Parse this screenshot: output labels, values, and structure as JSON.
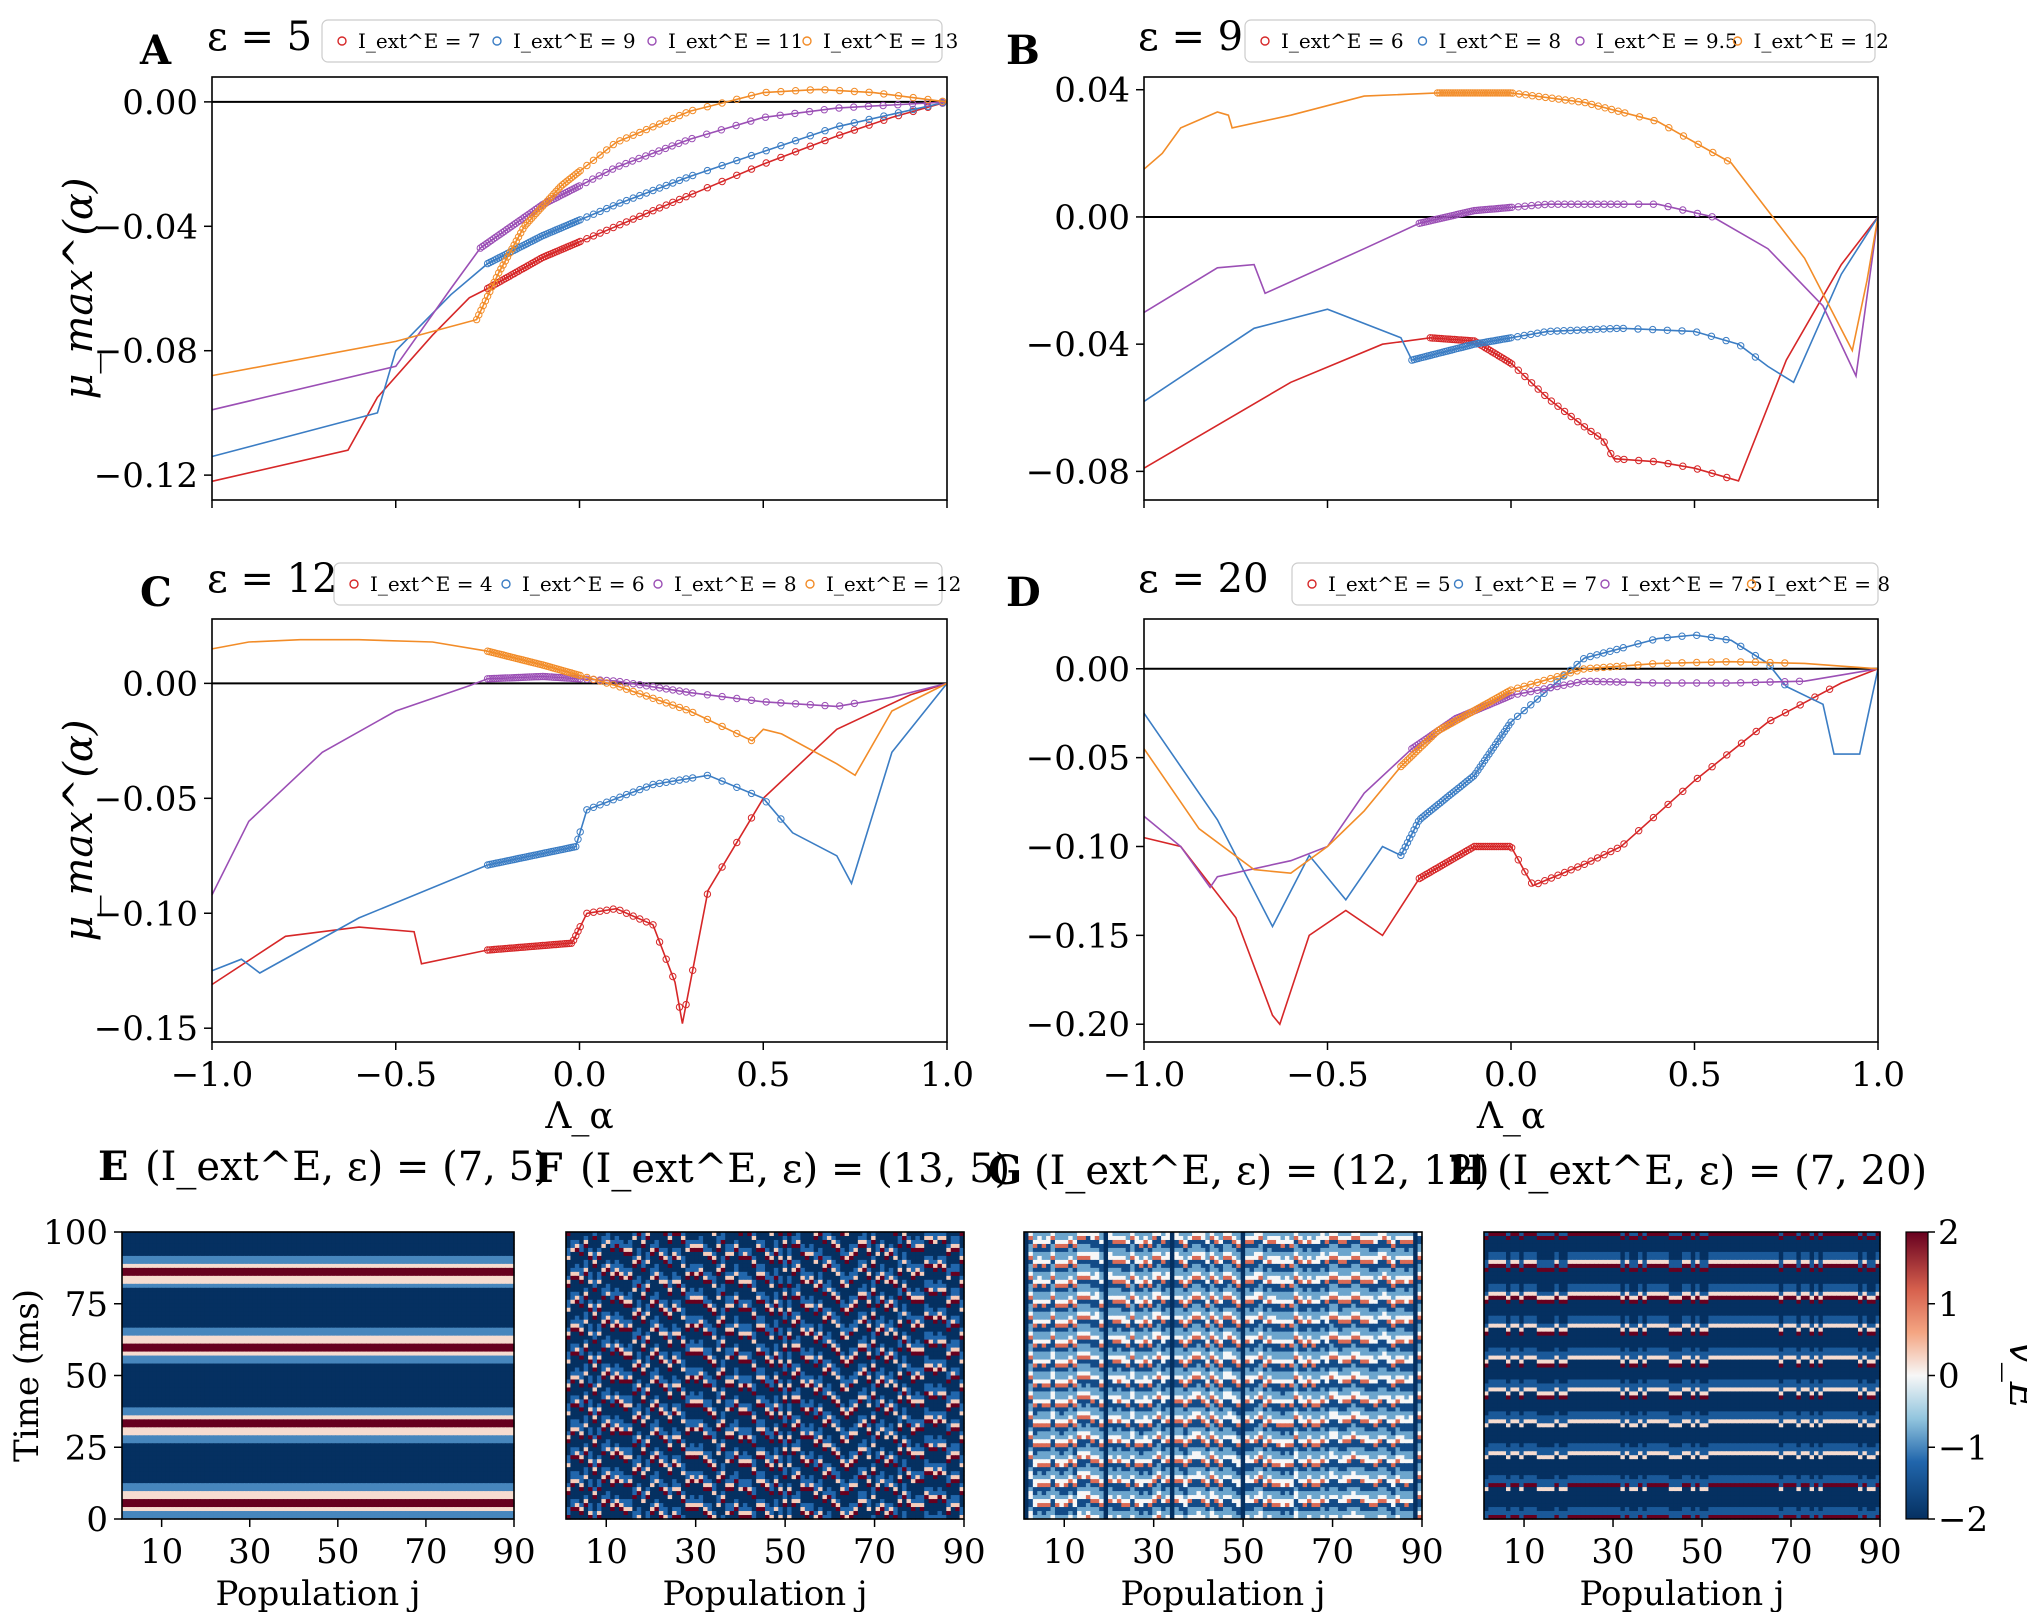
{
  "colors": {
    "red": "#d62728",
    "blue": "#3b7dc4",
    "purple": "#9b4fb5",
    "orange": "#f28c28"
  },
  "chart_data": [
    {
      "panel": "A",
      "type": "line",
      "title": "ε = 5",
      "ylabel": "μ_max^(α)",
      "xlabel": "",
      "xlim": [
        -1,
        1
      ],
      "ylim": [
        -0.128,
        0.008
      ],
      "yticks": [
        "0.00",
        "−0.04",
        "−0.08",
        "−0.12"
      ],
      "ytick_values": [
        0,
        -0.04,
        -0.08,
        -0.12
      ],
      "xticks": [],
      "xtick_values": [],
      "series": [
        {
          "name": "I_ext^E = 7",
          "color": "red",
          "x": [
            -1,
            -0.63,
            -0.55,
            -0.4,
            -0.3,
            -0.25,
            -0.1,
            0.1,
            0.3,
            0.5,
            0.7,
            0.85,
            1.0
          ],
          "y": [
            -0.122,
            -0.112,
            -0.095,
            -0.075,
            -0.063,
            -0.06,
            -0.05,
            -0.04,
            -0.03,
            -0.02,
            -0.011,
            -0.005,
            0.0
          ],
          "markers_from": -0.25
        },
        {
          "name": "I_ext^E = 9",
          "color": "blue",
          "x": [
            -1,
            -0.55,
            -0.5,
            -0.35,
            -0.25,
            -0.1,
            0.1,
            0.3,
            0.5,
            0.7,
            0.85,
            1.0
          ],
          "y": [
            -0.114,
            -0.1,
            -0.08,
            -0.062,
            -0.052,
            -0.043,
            -0.033,
            -0.024,
            -0.016,
            -0.008,
            -0.004,
            0.0
          ],
          "markers_from": -0.25
        },
        {
          "name": "I_ext^E = 11",
          "color": "purple",
          "x": [
            -1,
            -0.5,
            -0.35,
            -0.27,
            -0.1,
            0.1,
            0.3,
            0.5,
            0.7,
            0.85,
            1.0
          ],
          "y": [
            -0.099,
            -0.085,
            -0.06,
            -0.047,
            -0.033,
            -0.021,
            -0.012,
            -0.005,
            -0.002,
            -0.001,
            0.0
          ],
          "markers_from": -0.27
        },
        {
          "name": "I_ext^E = 13",
          "color": "orange",
          "x": [
            -1,
            -0.5,
            -0.28,
            -0.22,
            -0.15,
            -0.05,
            0.1,
            0.3,
            0.5,
            0.65,
            0.8,
            1.0
          ],
          "y": [
            -0.088,
            -0.077,
            -0.07,
            -0.055,
            -0.04,
            -0.027,
            -0.013,
            -0.003,
            0.003,
            0.004,
            0.003,
            0.0
          ],
          "markers_from": -0.28
        }
      ]
    },
    {
      "panel": "B",
      "type": "line",
      "title": "ε = 9",
      "ylabel": "",
      "xlabel": "",
      "xlim": [
        -1,
        1
      ],
      "ylim": [
        -0.089,
        0.044
      ],
      "yticks": [
        "0.04",
        "0.00",
        "−0.04",
        "−0.08"
      ],
      "ytick_values": [
        0.04,
        0,
        -0.04,
        -0.08
      ],
      "xticks": [],
      "xtick_values": [],
      "series": [
        {
          "name": "I_ext^E = 6",
          "color": "red",
          "x": [
            -1,
            -0.6,
            -0.35,
            -0.22,
            -0.1,
            0.0,
            0.1,
            0.2,
            0.25,
            0.28,
            0.4,
            0.5,
            0.62,
            0.75,
            0.9,
            1.0
          ],
          "y": [
            -0.079,
            -0.052,
            -0.04,
            -0.038,
            -0.039,
            -0.046,
            -0.057,
            -0.066,
            -0.07,
            -0.076,
            -0.077,
            -0.079,
            -0.083,
            -0.045,
            -0.015,
            0.0
          ],
          "markers_from": -0.22,
          "markers_to": 0.62
        },
        {
          "name": "I_ext^E = 8",
          "color": "blue",
          "x": [
            -1,
            -0.7,
            -0.5,
            -0.3,
            -0.27,
            -0.1,
            0.1,
            0.3,
            0.5,
            0.62,
            0.7,
            0.77,
            0.9,
            1.0
          ],
          "y": [
            -0.058,
            -0.035,
            -0.029,
            -0.038,
            -0.045,
            -0.04,
            -0.036,
            -0.035,
            -0.036,
            -0.04,
            -0.047,
            -0.052,
            -0.018,
            0.0
          ],
          "markers_from": -0.27,
          "markers_to": 0.7
        },
        {
          "name": "I_ext^E = 9.5",
          "color": "purple",
          "x": [
            -1,
            -0.8,
            -0.7,
            -0.67,
            -0.4,
            -0.25,
            -0.1,
            0.1,
            0.25,
            0.4,
            0.55,
            0.7,
            0.85,
            0.94,
            1.0
          ],
          "y": [
            -0.03,
            -0.016,
            -0.015,
            -0.024,
            -0.01,
            -0.002,
            0.002,
            0.004,
            0.004,
            0.004,
            0.0,
            -0.01,
            -0.028,
            -0.05,
            0.0
          ],
          "markers_from": -0.25,
          "markers_to": 0.55
        },
        {
          "name": "I_ext^E = 12",
          "color": "orange",
          "x": [
            -1,
            -0.95,
            -0.9,
            -0.8,
            -0.77,
            -0.76,
            -0.6,
            -0.4,
            -0.2,
            0.0,
            0.2,
            0.4,
            0.6,
            0.8,
            0.93,
            0.97,
            1.0
          ],
          "y": [
            0.015,
            0.02,
            0.028,
            0.033,
            0.032,
            0.028,
            0.032,
            0.038,
            0.039,
            0.039,
            0.036,
            0.03,
            0.017,
            -0.013,
            -0.042,
            -0.02,
            0.0
          ],
          "markers_from": -0.2,
          "markers_to": 0.6
        }
      ]
    },
    {
      "panel": "C",
      "type": "line",
      "title": "ε = 12",
      "ylabel": "μ_max^(α)",
      "xlabel": "Λ_α",
      "xlim": [
        -1,
        1
      ],
      "ylim": [
        -0.156,
        0.028
      ],
      "yticks": [
        "0.00",
        "−0.05",
        "−0.10",
        "−0.15"
      ],
      "ytick_values": [
        0,
        -0.05,
        -0.1,
        -0.15
      ],
      "xticks": [
        "−1.0",
        "−0.5",
        "0.0",
        "0.5",
        "1.0"
      ],
      "xtick_values": [
        -1,
        -0.5,
        0,
        0.5,
        1
      ],
      "series": [
        {
          "name": "I_ext^E = 4",
          "color": "red",
          "x": [
            -1,
            -0.8,
            -0.6,
            -0.45,
            -0.43,
            -0.25,
            -0.02,
            0.02,
            0.1,
            0.2,
            0.26,
            0.28,
            0.35,
            0.5,
            0.7,
            0.9,
            1.0
          ],
          "y": [
            -0.131,
            -0.11,
            -0.106,
            -0.108,
            -0.122,
            -0.116,
            -0.113,
            -0.1,
            -0.098,
            -0.105,
            -0.13,
            -0.148,
            -0.09,
            -0.05,
            -0.02,
            -0.005,
            0.0
          ],
          "markers_from": -0.25,
          "markers_to": 0.5
        },
        {
          "name": "I_ext^E = 6",
          "color": "blue",
          "x": [
            -1,
            -0.92,
            -0.87,
            -0.6,
            -0.25,
            -0.01,
            0.02,
            0.2,
            0.35,
            0.5,
            0.58,
            0.7,
            0.74,
            0.85,
            1.0
          ],
          "y": [
            -0.125,
            -0.12,
            -0.126,
            -0.102,
            -0.079,
            -0.071,
            -0.055,
            -0.044,
            -0.04,
            -0.05,
            -0.065,
            -0.075,
            -0.087,
            -0.03,
            0.0
          ],
          "markers_from": -0.25,
          "markers_to": 0.58
        },
        {
          "name": "I_ext^E = 8",
          "color": "purple",
          "x": [
            -1,
            -0.9,
            -0.7,
            -0.5,
            -0.3,
            -0.25,
            -0.1,
            0.1,
            0.3,
            0.5,
            0.7,
            0.85,
            1.0
          ],
          "y": [
            -0.092,
            -0.06,
            -0.03,
            -0.012,
            -0.001,
            0.002,
            0.003,
            0.001,
            -0.004,
            -0.008,
            -0.01,
            -0.006,
            0.0
          ],
          "markers_from": -0.25,
          "markers_to": 0.75
        },
        {
          "name": "I_ext^E = 12",
          "color": "orange",
          "x": [
            -1,
            -0.9,
            -0.76,
            -0.6,
            -0.4,
            -0.25,
            -0.1,
            0.1,
            0.3,
            0.47,
            0.5,
            0.55,
            0.7,
            0.75,
            0.85,
            1.0
          ],
          "y": [
            0.015,
            0.018,
            0.019,
            0.019,
            0.018,
            0.014,
            0.008,
            -0.001,
            -0.012,
            -0.025,
            -0.02,
            -0.022,
            -0.035,
            -0.04,
            -0.012,
            0.0
          ],
          "markers_from": -0.25,
          "markers_to": 0.5
        }
      ]
    },
    {
      "panel": "D",
      "type": "line",
      "title": "ε = 20",
      "ylabel": "",
      "xlabel": "Λ_α",
      "xlim": [
        -1,
        1
      ],
      "ylim": [
        -0.21,
        0.028
      ],
      "yticks": [
        "0.00",
        "−0.05",
        "−0.10",
        "−0.15",
        "−0.20"
      ],
      "ytick_values": [
        0,
        -0.05,
        -0.1,
        -0.15,
        -0.2
      ],
      "xticks": [
        "−1.0",
        "−0.5",
        "0.0",
        "0.5",
        "1.0"
      ],
      "xtick_values": [
        -1,
        -0.5,
        0,
        0.5,
        1
      ],
      "series": [
        {
          "name": "I_ext^E = 5",
          "color": "red",
          "x": [
            -1,
            -0.9,
            -0.75,
            -0.65,
            -0.63,
            -0.55,
            -0.45,
            -0.35,
            -0.25,
            -0.1,
            0.0,
            0.04,
            0.06,
            0.2,
            0.3,
            0.5,
            0.7,
            0.9,
            1.0
          ],
          "y": [
            -0.095,
            -0.1,
            -0.14,
            -0.195,
            -0.2,
            -0.15,
            -0.136,
            -0.15,
            -0.118,
            -0.1,
            -0.1,
            -0.115,
            -0.122,
            -0.11,
            -0.1,
            -0.063,
            -0.03,
            -0.008,
            0.0
          ],
          "markers_from": -0.25,
          "markers_to": 0.9
        },
        {
          "name": "I_ext^E = 7",
          "color": "blue",
          "x": [
            -1,
            -0.8,
            -0.65,
            -0.55,
            -0.45,
            -0.35,
            -0.3,
            -0.25,
            -0.1,
            0.0,
            0.2,
            0.4,
            0.5,
            0.6,
            0.7,
            0.75,
            0.85,
            0.88,
            0.95,
            1.0
          ],
          "y": [
            -0.025,
            -0.085,
            -0.145,
            -0.105,
            -0.13,
            -0.1,
            -0.105,
            -0.085,
            -0.06,
            -0.03,
            0.006,
            0.017,
            0.019,
            0.016,
            0.003,
            -0.01,
            -0.02,
            -0.048,
            -0.048,
            0.0
          ],
          "markers_from": -0.3,
          "markers_to": 0.75
        },
        {
          "name": "I_ext^E = 7.5",
          "color": "purple",
          "x": [
            -1,
            -0.9,
            -0.82,
            -0.8,
            -0.6,
            -0.5,
            -0.4,
            -0.27,
            -0.15,
            0.0,
            0.2,
            0.4,
            0.6,
            0.8,
            1.0
          ],
          "y": [
            -0.083,
            -0.1,
            -0.123,
            -0.117,
            -0.108,
            -0.1,
            -0.07,
            -0.045,
            -0.028,
            -0.015,
            -0.007,
            -0.008,
            -0.008,
            -0.007,
            0.0
          ],
          "markers_from": -0.27,
          "markers_to": 0.8
        },
        {
          "name": "I_ext^E = 8",
          "color": "orange",
          "x": [
            -1,
            -0.85,
            -0.7,
            -0.6,
            -0.5,
            -0.4,
            -0.3,
            -0.2,
            0.0,
            0.2,
            0.4,
            0.6,
            0.8,
            1.0
          ],
          "y": [
            -0.045,
            -0.09,
            -0.113,
            -0.115,
            -0.1,
            -0.08,
            -0.055,
            -0.035,
            -0.012,
            0.0,
            0.003,
            0.004,
            0.003,
            0.0
          ],
          "markers_from": -0.3,
          "markers_to": 0.75
        }
      ]
    },
    {
      "panel": "E",
      "type": "heatmap",
      "title": "(I_ext^E, ε) = (7, 5)",
      "xlabel": "Population j",
      "ylabel": "Time (ms)",
      "xticks": [
        "10",
        "30",
        "50",
        "70",
        "90"
      ],
      "xtick_values": [
        10,
        30,
        50,
        70,
        90
      ],
      "yticks": [
        "0",
        "25",
        "50",
        "75",
        "100"
      ],
      "ytick_values": [
        0,
        25,
        50,
        75,
        100
      ],
      "pattern": "horizontal_bands",
      "bands_at_ms": [
        6,
        33,
        60,
        86
      ]
    },
    {
      "panel": "F",
      "type": "heatmap",
      "title": "(I_ext^E, ε) = (13, 5)",
      "xlabel": "Population j",
      "ylabel": "",
      "xticks": [
        "10",
        "30",
        "50",
        "70",
        "90"
      ],
      "xtick_values": [
        10,
        30,
        50,
        70,
        90
      ],
      "yticks": [],
      "ytick_values": [],
      "pattern": "diagonal_waves"
    },
    {
      "panel": "G",
      "type": "heatmap",
      "title": "(I_ext^E, ε) = (12, 12)",
      "xlabel": "Population j",
      "ylabel": "",
      "xticks": [
        "10",
        "30",
        "50",
        "70",
        "90"
      ],
      "xtick_values": [
        10,
        30,
        50,
        70,
        90
      ],
      "yticks": [],
      "ytick_values": [],
      "pattern": "irregular"
    },
    {
      "panel": "H",
      "type": "heatmap",
      "title": "(I_ext^E, ε) = (7, 20)",
      "xlabel": "Population j",
      "ylabel": "",
      "xticks": [
        "10",
        "30",
        "50",
        "70",
        "90"
      ],
      "xtick_values": [
        10,
        30,
        50,
        70,
        90
      ],
      "yticks": [],
      "ytick_values": [],
      "pattern": "horizontal_stripes",
      "colorbar": {
        "label": "v_E",
        "ticks": [
          "2",
          "1",
          "0",
          "−1",
          "−2"
        ],
        "tick_values": [
          2,
          1,
          0,
          -1,
          -2
        ],
        "colormap": "RdBu_r"
      }
    }
  ]
}
